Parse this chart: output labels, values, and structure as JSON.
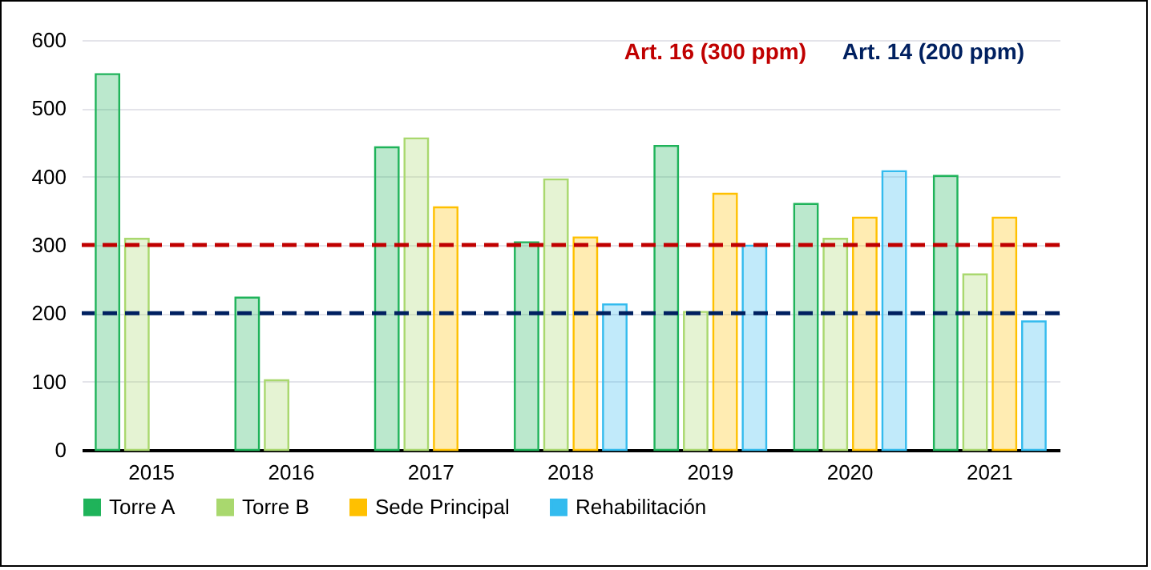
{
  "chart_data": {
    "type": "bar",
    "categories": [
      "2015",
      "2016",
      "2017",
      "2018",
      "2019",
      "2020",
      "2021"
    ],
    "series": [
      {
        "name": "Torre A",
        "color": "#1fb35a",
        "values": [
          550,
          223,
          443,
          304,
          445,
          360,
          401
        ]
      },
      {
        "name": "Torre B",
        "color": "#a9d86e",
        "values": [
          309,
          102,
          456,
          396,
          202,
          309,
          257
        ]
      },
      {
        "name": "Sede Principal",
        "color": "#ffc000",
        "values": [
          null,
          null,
          355,
          311,
          375,
          340,
          340
        ]
      },
      {
        "name": "Rehabilitación",
        "color": "#33bbee",
        "values": [
          null,
          null,
          null,
          213,
          299,
          408,
          188
        ]
      }
    ],
    "ylim": [
      0,
      600
    ],
    "yticks": [
      0,
      100,
      200,
      300,
      400,
      500,
      600
    ],
    "grid": "y",
    "legend": "bottom",
    "ref_lines": [
      {
        "axis": "y",
        "value": 300,
        "label": "Art. 16 (300 ppm)",
        "color": "#c00000",
        "line_style": "dashed"
      },
      {
        "axis": "y",
        "value": 200,
        "label": "Art. 14 (200 ppm)",
        "color": "#002060",
        "line_style": "dashed"
      }
    ]
  }
}
